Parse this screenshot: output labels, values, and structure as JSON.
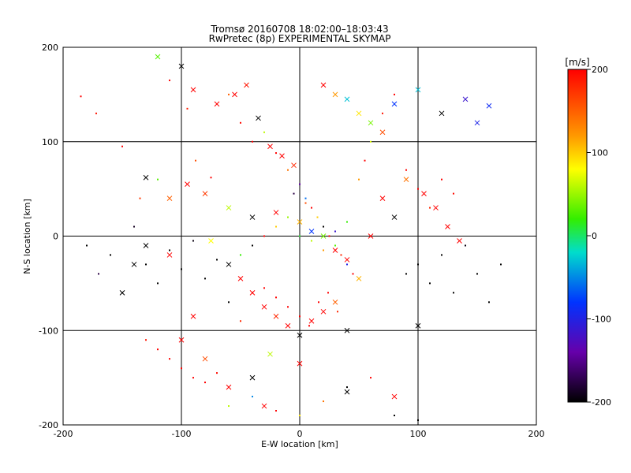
{
  "chart_data": {
    "type": "scatter",
    "title": "Tromsø 20160708 18:02:00–18:03:43",
    "subtitle": "RwPretec (8p) EXPERIMENTAL SKYMAP",
    "xlabel": "E-W location [km]",
    "ylabel": "N-S location [km]",
    "xlim": [
      -200,
      200
    ],
    "ylim": [
      -200,
      200
    ],
    "xticks": [
      "-200",
      "-100",
      "0",
      "100",
      "200"
    ],
    "yticks": [
      "-200",
      "-100",
      "0",
      "100",
      "200"
    ],
    "grid": true,
    "colorbar": {
      "label": "[m/s]",
      "min": -200,
      "max": 200,
      "ticks": [
        "200",
        "100",
        "0",
        "-100",
        "-200"
      ]
    },
    "series": [
      {
        "name": "dots",
        "marker": "dot",
        "points": [
          [
            -185,
            148,
            200
          ],
          [
            -172,
            130,
            190
          ],
          [
            -150,
            95,
            200
          ],
          [
            -135,
            40,
            170
          ],
          [
            -120,
            60,
            30
          ],
          [
            -110,
            165,
            200
          ],
          [
            -95,
            135,
            185
          ],
          [
            -88,
            80,
            160
          ],
          [
            -75,
            62,
            200
          ],
          [
            -60,
            150,
            150
          ],
          [
            -50,
            120,
            195
          ],
          [
            -40,
            100,
            200
          ],
          [
            -30,
            110,
            60
          ],
          [
            -20,
            88,
            200
          ],
          [
            -10,
            70,
            140
          ],
          [
            0,
            55,
            -150
          ],
          [
            5,
            40,
            -60
          ],
          [
            10,
            30,
            200
          ],
          [
            15,
            20,
            100
          ],
          [
            20,
            10,
            -200
          ],
          [
            25,
            0,
            200
          ],
          [
            30,
            -10,
            30
          ],
          [
            35,
            -20,
            180
          ],
          [
            40,
            -30,
            -100
          ],
          [
            45,
            -40,
            200
          ],
          [
            50,
            60,
            120
          ],
          [
            55,
            80,
            200
          ],
          [
            60,
            100,
            70
          ],
          [
            70,
            130,
            190
          ],
          [
            80,
            150,
            200
          ],
          [
            90,
            70,
            200
          ],
          [
            100,
            50,
            200
          ],
          [
            110,
            30,
            180
          ],
          [
            120,
            60,
            200
          ],
          [
            130,
            45,
            195
          ],
          [
            -180,
            -10,
            -200
          ],
          [
            -170,
            -40,
            -180
          ],
          [
            -160,
            -20,
            -200
          ],
          [
            -150,
            -60,
            -200
          ],
          [
            -140,
            10,
            -190
          ],
          [
            -130,
            -30,
            -200
          ],
          [
            -120,
            -50,
            -200
          ],
          [
            -110,
            -15,
            -200
          ],
          [
            -100,
            -35,
            -200
          ],
          [
            -90,
            -5,
            -195
          ],
          [
            -80,
            -45,
            -200
          ],
          [
            -70,
            -25,
            -200
          ],
          [
            -60,
            -70,
            -200
          ],
          [
            -50,
            -90,
            180
          ],
          [
            -40,
            -60,
            200
          ],
          [
            -30,
            -55,
            200
          ],
          [
            -20,
            -65,
            200
          ],
          [
            -10,
            -75,
            200
          ],
          [
            0,
            -85,
            200
          ],
          [
            8,
            -95,
            200
          ],
          [
            16,
            -70,
            200
          ],
          [
            24,
            -60,
            200
          ],
          [
            32,
            -80,
            180
          ],
          [
            -120,
            -120,
            200
          ],
          [
            -110,
            -130,
            200
          ],
          [
            -100,
            -140,
            200
          ],
          [
            -90,
            -150,
            200
          ],
          [
            -80,
            -155,
            200
          ],
          [
            -70,
            -145,
            195
          ],
          [
            -130,
            -110,
            190
          ],
          [
            -60,
            -180,
            60
          ],
          [
            -40,
            -170,
            -50
          ],
          [
            -20,
            -185,
            200
          ],
          [
            0,
            -190,
            90
          ],
          [
            20,
            -175,
            140
          ],
          [
            40,
            -160,
            -200
          ],
          [
            60,
            -150,
            200
          ],
          [
            80,
            -190,
            -200
          ],
          [
            100,
            -195,
            -200
          ],
          [
            90,
            -40,
            -200
          ],
          [
            100,
            -30,
            -200
          ],
          [
            110,
            -50,
            -200
          ],
          [
            120,
            -20,
            -200
          ],
          [
            130,
            -60,
            -200
          ],
          [
            140,
            -10,
            -195
          ],
          [
            150,
            -40,
            -200
          ],
          [
            160,
            -70,
            -200
          ],
          [
            170,
            -30,
            -200
          ],
          [
            -50,
            -20,
            20
          ],
          [
            -40,
            -10,
            -200
          ],
          [
            -30,
            0,
            200
          ],
          [
            -20,
            10,
            100
          ],
          [
            -10,
            20,
            50
          ],
          [
            0,
            0,
            10
          ],
          [
            10,
            -5,
            60
          ],
          [
            20,
            -15,
            120
          ],
          [
            30,
            5,
            -120
          ],
          [
            40,
            15,
            20
          ],
          [
            -5,
            45,
            -180
          ],
          [
            5,
            35,
            160
          ]
        ]
      },
      {
        "name": "crosses",
        "marker": "x",
        "points": [
          [
            -120,
            190,
            30
          ],
          [
            -100,
            180,
            -200
          ],
          [
            -90,
            155,
            200
          ],
          [
            -70,
            140,
            200
          ],
          [
            -55,
            150,
            200
          ],
          [
            -45,
            160,
            190
          ],
          [
            -35,
            125,
            -200
          ],
          [
            -25,
            95,
            200
          ],
          [
            -15,
            85,
            200
          ],
          [
            -5,
            75,
            180
          ],
          [
            20,
            160,
            200
          ],
          [
            30,
            150,
            120
          ],
          [
            40,
            145,
            -30
          ],
          [
            50,
            130,
            90
          ],
          [
            60,
            120,
            40
          ],
          [
            70,
            110,
            160
          ],
          [
            80,
            140,
            -80
          ],
          [
            100,
            155,
            -30
          ],
          [
            120,
            130,
            -200
          ],
          [
            140,
            145,
            -120
          ],
          [
            150,
            120,
            -100
          ],
          [
            160,
            138,
            -90
          ],
          [
            -130,
            62,
            -200
          ],
          [
            -110,
            40,
            150
          ],
          [
            -95,
            55,
            200
          ],
          [
            -80,
            45,
            170
          ],
          [
            -60,
            30,
            60
          ],
          [
            -40,
            20,
            -200
          ],
          [
            -20,
            25,
            200
          ],
          [
            0,
            15,
            110
          ],
          [
            10,
            5,
            -80
          ],
          [
            20,
            0,
            40
          ],
          [
            30,
            -15,
            200
          ],
          [
            40,
            -25,
            200
          ],
          [
            50,
            -45,
            110
          ],
          [
            -60,
            -30,
            -200
          ],
          [
            -50,
            -45,
            200
          ],
          [
            -40,
            -60,
            200
          ],
          [
            -30,
            -75,
            200
          ],
          [
            -20,
            -85,
            180
          ],
          [
            -10,
            -95,
            200
          ],
          [
            0,
            -105,
            -200
          ],
          [
            10,
            -90,
            200
          ],
          [
            20,
            -80,
            200
          ],
          [
            30,
            -70,
            150
          ],
          [
            40,
            -100,
            -200
          ],
          [
            -150,
            -60,
            -200
          ],
          [
            -140,
            -30,
            -200
          ],
          [
            -130,
            -10,
            -200
          ],
          [
            -90,
            -85,
            200
          ],
          [
            -100,
            -110,
            200
          ],
          [
            -80,
            -130,
            160
          ],
          [
            -60,
            -160,
            200
          ],
          [
            -40,
            -150,
            -200
          ],
          [
            -30,
            -180,
            200
          ],
          [
            -25,
            -125,
            60
          ],
          [
            0,
            -135,
            200
          ],
          [
            40,
            -165,
            -200
          ],
          [
            80,
            -170,
            200
          ],
          [
            100,
            -95,
            -200
          ],
          [
            60,
            0,
            200
          ],
          [
            70,
            40,
            200
          ],
          [
            80,
            20,
            -200
          ],
          [
            90,
            60,
            140
          ],
          [
            105,
            45,
            200
          ],
          [
            115,
            30,
            200
          ],
          [
            125,
            10,
            200
          ],
          [
            135,
            -5,
            200
          ],
          [
            -110,
            -20,
            200
          ],
          [
            -75,
            -5,
            80
          ]
        ]
      }
    ]
  }
}
